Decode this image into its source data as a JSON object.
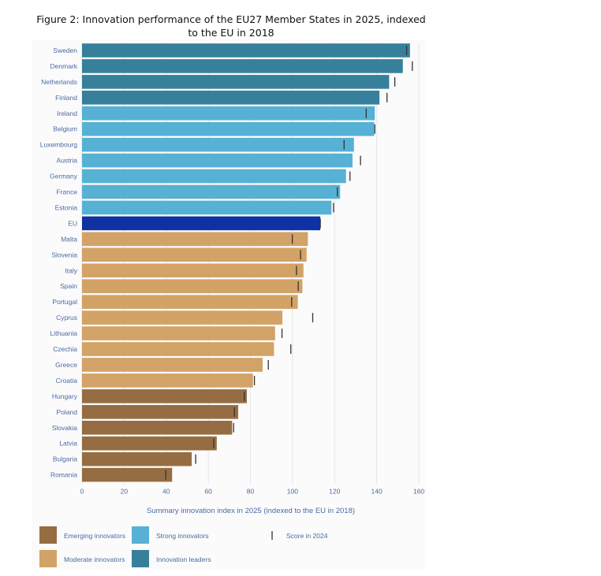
{
  "figure_title": "Figure 2: Innovation performance of the EU27 Member States in 2025, indexed to the EU in 2018",
  "colors": {
    "emerging": "#966d42",
    "moderate": "#d2a267",
    "strong": "#56b1d5",
    "leaders": "#37809c",
    "eu": "#1031a2",
    "marker": "#333333"
  },
  "chart_data": {
    "type": "bar",
    "orientation": "horizontal",
    "title": "Figure 2: Innovation performance of the EU27 Member States in 2025, indexed to the EU in 2018",
    "xlabel": "Summary innovation index in 2025 (indexed to the EU in 2018)",
    "ylabel": "",
    "xlim": [
      0,
      160
    ],
    "xticks": [
      0,
      20,
      40,
      60,
      80,
      100,
      120,
      140,
      160
    ],
    "grid": true,
    "categories": [
      "Sweden",
      "Denmark",
      "Netherlands",
      "Finland",
      "Ireland",
      "Belgium",
      "Luxembourg",
      "Austria",
      "Germany",
      "France",
      "Estonia",
      "EU",
      "Malta",
      "Slovenia",
      "Italy",
      "Spain",
      "Portugal",
      "Cyprus",
      "Lithuania",
      "Czechia",
      "Greece",
      "Croatia",
      "Hungary",
      "Poland",
      "Slovakia",
      "Latvia",
      "Bulgaria",
      "Romania"
    ],
    "values": [
      155.8,
      152.4,
      145.9,
      141.3,
      139.1,
      138.8,
      129.2,
      128.5,
      125.4,
      122.6,
      118.5,
      113.2,
      107.3,
      106.7,
      105.2,
      104.7,
      102.5,
      95.2,
      91.7,
      91.2,
      85.8,
      81.2,
      78.3,
      74.2,
      71.3,
      64.0,
      52.1,
      42.8
    ],
    "groups": [
      "leaders",
      "leaders",
      "leaders",
      "leaders",
      "strong",
      "strong",
      "strong",
      "strong",
      "strong",
      "strong",
      "strong",
      "eu",
      "moderate",
      "moderate",
      "moderate",
      "moderate",
      "moderate",
      "moderate",
      "moderate",
      "moderate",
      "moderate",
      "moderate",
      "emerging",
      "emerging",
      "emerging",
      "emerging",
      "emerging",
      "emerging"
    ],
    "score_2024": [
      154.2,
      156.9,
      148.6,
      144.9,
      135.0,
      139.1,
      124.5,
      132.3,
      127.3,
      121.3,
      119.5,
      113.2,
      99.9,
      103.8,
      101.9,
      102.7,
      99.6,
      109.6,
      95.0,
      99.2,
      88.5,
      81.9,
      77.1,
      72.4,
      72.0,
      62.6,
      54.0,
      39.8
    ],
    "legend": [
      {
        "key": "emerging",
        "label": "Emerging innovators"
      },
      {
        "key": "strong",
        "label": "Strong innovators"
      },
      {
        "key": "marker",
        "label": "Score in 2024"
      },
      {
        "key": "moderate",
        "label": "Moderate innovators"
      },
      {
        "key": "leaders",
        "label": "Innovation leaders"
      }
    ]
  }
}
